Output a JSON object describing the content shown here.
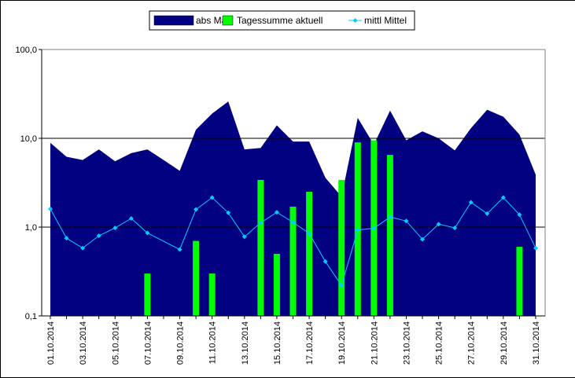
{
  "chart_data": {
    "type": "bar+line+area",
    "x": [
      "01.10.2014",
      "02.10.2014",
      "03.10.2014",
      "04.10.2014",
      "05.10.2014",
      "06.10.2014",
      "07.10.2014",
      "08.10.2014",
      "09.10.2014",
      "10.10.2014",
      "11.10.2014",
      "12.10.2014",
      "13.10.2014",
      "14.10.2014",
      "15.10.2014",
      "16.10.2014",
      "17.10.2014",
      "18.10.2014",
      "19.10.2014",
      "20.10.2014",
      "21.10.2014",
      "22.10.2014",
      "23.10.2014",
      "24.10.2014",
      "25.10.2014",
      "26.10.2014",
      "27.10.2014",
      "28.10.2014",
      "29.10.2014",
      "30.10.2014",
      "31.10.2014"
    ],
    "x_tick_labels": [
      "01.10.2014",
      "03.10.2014",
      "05.10.2014",
      "07.10.2014",
      "09.10.2014",
      "11.10.2014",
      "13.10.2014",
      "15.10.2014",
      "17.10.2014",
      "19.10.2014",
      "21.10.2014",
      "23.10.2014",
      "25.10.2014",
      "27.10.2014",
      "29.10.2014",
      "31.10.2014"
    ],
    "y_tick_labels": [
      "100,0",
      "10,0",
      "1,0",
      "0,1"
    ],
    "y_scale": "log",
    "ylim": [
      0.1,
      100
    ],
    "grid": "horizontal major lines",
    "legend": "top-center",
    "series": [
      {
        "name": "abs Max",
        "kind": "area",
        "color": "#000080",
        "values": [
          8.9,
          6.2,
          5.7,
          7.5,
          5.5,
          6.8,
          7.5,
          5.7,
          4.3,
          12.5,
          19,
          26,
          7.5,
          7.8,
          14,
          9.2,
          9.2,
          3.6,
          2.2,
          17,
          8.5,
          20.5,
          9.5,
          12,
          10,
          7.3,
          13,
          21,
          17.5,
          11,
          3.9
        ]
      },
      {
        "name": "Tagessumme aktuell",
        "kind": "bar",
        "color": "#00ff00",
        "values": [
          null,
          null,
          null,
          null,
          null,
          null,
          0.3,
          null,
          null,
          0.7,
          0.3,
          null,
          null,
          3.4,
          0.5,
          1.7,
          2.5,
          null,
          3.4,
          9,
          9.5,
          6.5,
          null,
          null,
          null,
          null,
          null,
          null,
          null,
          0.6,
          null
        ]
      },
      {
        "name": "mittl Mittel",
        "kind": "line",
        "color": "#00ccff",
        "values": [
          1.6,
          0.75,
          0.58,
          0.8,
          0.98,
          1.25,
          0.86,
          null,
          0.56,
          1.58,
          2.15,
          1.45,
          0.78,
          1.12,
          1.47,
          1.13,
          0.85,
          0.41,
          0.22,
          0.93,
          0.97,
          1.3,
          1.17,
          0.73,
          1.08,
          0.98,
          1.9,
          1.42,
          2.15,
          1.38,
          0.58
        ]
      }
    ]
  }
}
